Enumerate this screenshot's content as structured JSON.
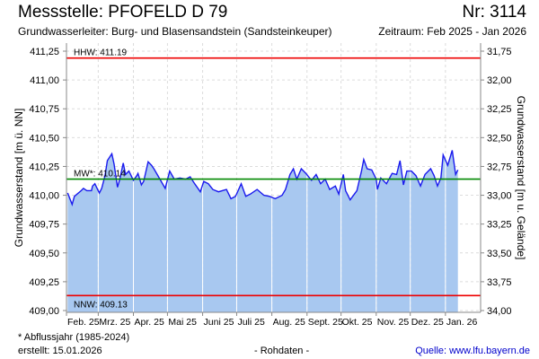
{
  "header": {
    "title": "Messstelle: PFOFELD D 79",
    "nr": "Nr: 3114",
    "aquifer": "Grundwasserleiter:  Burg- und Blasensandstein (Sandsteinkeuper)",
    "period": "Zeitraum: Feb 2025 - Jan 2026"
  },
  "footer": {
    "footnote": "* Abflussjahr (1985-2024)",
    "created": "erstellt:  15.01.2026",
    "raw": "- Rohdaten -",
    "source": "Quelle: www.lfu.bayern.de"
  },
  "colors": {
    "fill": "#a8c8f0",
    "line": "#1a1aee",
    "hhw": "#ee0000",
    "nnw": "#ee0000",
    "mw": "#008800"
  },
  "chart_data": {
    "type": "area",
    "title": "Messstelle: PFOFELD D 79",
    "ylabel": "Grundwasserstand [m ü. NN]",
    "ylabel_right": "Grundwasserstand [m u. Gelände]",
    "ylim": [
      409.0,
      411.32
    ],
    "yticks": [
      "409,00",
      "409,25",
      "409,50",
      "409,75",
      "410,00",
      "410,25",
      "410,50",
      "410,75",
      "411,00",
      "411,25"
    ],
    "yticks_right": [
      "34,00",
      "33,75",
      "33,50",
      "33,25",
      "33,00",
      "32,75",
      "32,50",
      "32,25",
      "32,00",
      "31,75"
    ],
    "xlim_days": [
      0,
      365
    ],
    "x_start": "2025-02-01",
    "xticks": [
      {
        "day": 0,
        "label": "Feb. 25"
      },
      {
        "day": 28,
        "label": "Mrz. 25"
      },
      {
        "day": 59,
        "label": "Apr. 25"
      },
      {
        "day": 89,
        "label": "Mai 25"
      },
      {
        "day": 120,
        "label": "Juni 25"
      },
      {
        "day": 150,
        "label": "Juli 25"
      },
      {
        "day": 181,
        "label": "Aug. 25"
      },
      {
        "day": 212,
        "label": "Sept. 25"
      },
      {
        "day": 242,
        "label": "Okt. 25"
      },
      {
        "day": 273,
        "label": "Nov. 25"
      },
      {
        "day": 303,
        "label": "Dez. 25"
      },
      {
        "day": 334,
        "label": "Jan. 26"
      }
    ],
    "reference_lines": [
      {
        "name": "HHW",
        "value": 411.19,
        "label": "HHW: 411.19"
      },
      {
        "name": "MW",
        "value": 410.14,
        "label": "MW*: 410.14"
      },
      {
        "name": "NNW",
        "value": 409.13,
        "label": "NNW: 409.13"
      }
    ],
    "series": [
      {
        "name": "Grundwasserstand",
        "x_days": [
          1,
          5,
          7,
          13,
          15,
          18,
          22,
          23,
          25,
          29,
          31,
          34,
          36,
          40,
          42,
          45,
          47,
          50,
          52,
          55,
          59,
          62,
          63,
          66,
          68,
          72,
          75,
          77,
          80,
          87,
          91,
          95,
          100,
          105,
          109,
          113,
          118,
          121,
          125,
          129,
          134,
          141,
          145,
          149,
          154,
          158,
          162,
          168,
          174,
          179,
          184,
          190,
          193,
          197,
          200,
          203,
          207,
          211,
          216,
          220,
          224,
          228,
          232,
          237,
          240,
          244,
          246,
          250,
          256,
          260,
          262,
          265,
          269,
          273,
          274,
          277,
          282,
          287,
          291,
          294,
          297,
          300,
          304,
          308,
          312,
          316,
          321,
          324,
          327,
          330,
          332,
          336,
          340,
          343,
          345
        ],
        "values": [
          410.02,
          409.92,
          409.99,
          410.04,
          410.06,
          410.04,
          410.04,
          410.08,
          410.1,
          410.02,
          410.06,
          410.17,
          410.3,
          410.36,
          410.27,
          410.07,
          410.14,
          410.28,
          410.18,
          410.21,
          410.13,
          410.17,
          410.19,
          410.09,
          410.12,
          410.29,
          410.26,
          410.23,
          410.18,
          410.06,
          410.21,
          410.14,
          410.15,
          410.14,
          410.16,
          410.1,
          410.03,
          410.12,
          410.1,
          410.05,
          410.03,
          410.05,
          409.97,
          409.99,
          410.1,
          409.99,
          410.01,
          410.05,
          410.0,
          409.99,
          409.97,
          410.0,
          410.05,
          410.18,
          410.23,
          410.14,
          410.23,
          410.19,
          410.13,
          410.18,
          410.1,
          410.14,
          410.05,
          410.08,
          410.01,
          410.18,
          410.04,
          409.96,
          410.04,
          410.21,
          410.31,
          410.23,
          410.22,
          410.14,
          410.05,
          410.15,
          410.1,
          410.19,
          410.18,
          410.3,
          410.09,
          410.21,
          410.21,
          410.17,
          410.08,
          410.18,
          410.23,
          410.17,
          410.08,
          410.15,
          410.35,
          410.26,
          410.39,
          410.18,
          410.22
        ]
      }
    ]
  }
}
